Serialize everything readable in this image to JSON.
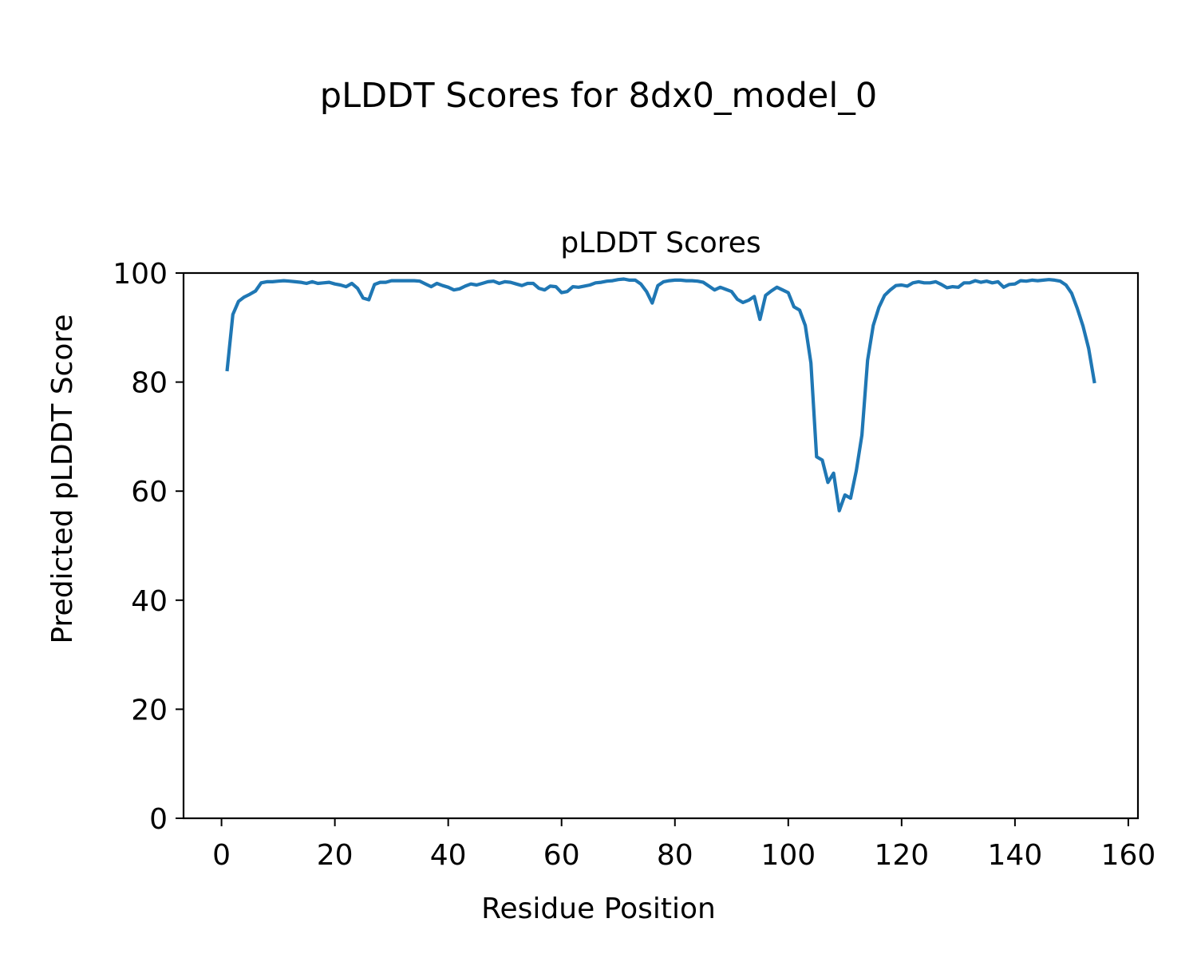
{
  "figure": {
    "suptitle": "pLDDT Scores for 8dx0_model_0"
  },
  "chart_data": {
    "type": "line",
    "title": "pLDDT Scores",
    "xlabel": "Residue Position",
    "ylabel": "Predicted pLDDT Score",
    "xlim": [
      -6.7,
      161.7
    ],
    "ylim": [
      0,
      100
    ],
    "xticks": [
      0,
      20,
      40,
      60,
      80,
      100,
      120,
      140,
      160
    ],
    "yticks": [
      0,
      20,
      40,
      60,
      80,
      100
    ],
    "grid": false,
    "legend": "none",
    "series": [
      {
        "color": "#1f77b4",
        "x": [
          1,
          2,
          3,
          4,
          5,
          6,
          7,
          8,
          9,
          10,
          11,
          12,
          13,
          14,
          15,
          16,
          17,
          18,
          19,
          20,
          21,
          22,
          23,
          24,
          25,
          26,
          27,
          28,
          29,
          30,
          31,
          32,
          33,
          34,
          35,
          36,
          37,
          38,
          39,
          40,
          41,
          42,
          43,
          44,
          45,
          46,
          47,
          48,
          49,
          50,
          51,
          52,
          53,
          54,
          55,
          56,
          57,
          58,
          59,
          60,
          61,
          62,
          63,
          64,
          65,
          66,
          67,
          68,
          69,
          70,
          71,
          72,
          73,
          74,
          75,
          76,
          77,
          78,
          79,
          80,
          81,
          82,
          83,
          84,
          85,
          86,
          87,
          88,
          89,
          90,
          91,
          92,
          93,
          94,
          95,
          96,
          97,
          98,
          99,
          100,
          101,
          102,
          103,
          104,
          105,
          106,
          107,
          108,
          109,
          110,
          111,
          112,
          113,
          114,
          115,
          116,
          117,
          118,
          119,
          120,
          121,
          122,
          123,
          124,
          125,
          126,
          127,
          128,
          129,
          130,
          131,
          132,
          133,
          134,
          135,
          136,
          137,
          138,
          139,
          140,
          141,
          142,
          143,
          144,
          145,
          146,
          147,
          148,
          149,
          150,
          151,
          152,
          153,
          154
        ],
        "y": [
          82.3,
          92.4,
          94.8,
          95.6,
          96.1,
          96.7,
          98.2,
          98.4,
          98.4,
          98.5,
          98.6,
          98.5,
          98.4,
          98.3,
          98.1,
          98.4,
          98.1,
          98.2,
          98.3,
          98.0,
          97.8,
          97.5,
          98.1,
          97.2,
          95.4,
          95.1,
          97.9,
          98.3,
          98.3,
          98.6,
          98.6,
          98.6,
          98.6,
          98.6,
          98.5,
          98.0,
          97.5,
          98.1,
          97.7,
          97.4,
          96.9,
          97.1,
          97.6,
          98.0,
          97.8,
          98.1,
          98.4,
          98.5,
          98.1,
          98.4,
          98.3,
          98.0,
          97.7,
          98.1,
          98.1,
          97.2,
          96.9,
          97.6,
          97.5,
          96.4,
          96.6,
          97.5,
          97.4,
          97.6,
          97.8,
          98.2,
          98.3,
          98.5,
          98.6,
          98.8,
          98.9,
          98.7,
          98.7,
          98.0,
          96.6,
          94.5,
          97.7,
          98.4,
          98.6,
          98.7,
          98.7,
          98.6,
          98.6,
          98.5,
          98.3,
          97.6,
          96.9,
          97.4,
          97.0,
          96.6,
          95.2,
          94.6,
          95.0,
          95.7,
          91.5,
          95.9,
          96.7,
          97.4,
          96.9,
          96.4,
          93.8,
          93.2,
          90.4,
          83.5,
          66.3,
          65.7,
          61.6,
          63.3,
          56.4,
          59.3,
          58.7,
          63.7,
          70.3,
          84.0,
          90.4,
          93.7,
          95.9,
          96.9,
          97.7,
          97.8,
          97.6,
          98.2,
          98.4,
          98.2,
          98.2,
          98.4,
          97.9,
          97.3,
          97.5,
          97.4,
          98.2,
          98.2,
          98.6,
          98.3,
          98.5,
          98.2,
          98.4,
          97.4,
          97.9,
          98.0,
          98.6,
          98.5,
          98.7,
          98.6,
          98.7,
          98.8,
          98.7,
          98.5,
          97.8,
          96.3,
          93.5,
          90.3,
          86.2,
          80.1
        ]
      }
    ]
  }
}
